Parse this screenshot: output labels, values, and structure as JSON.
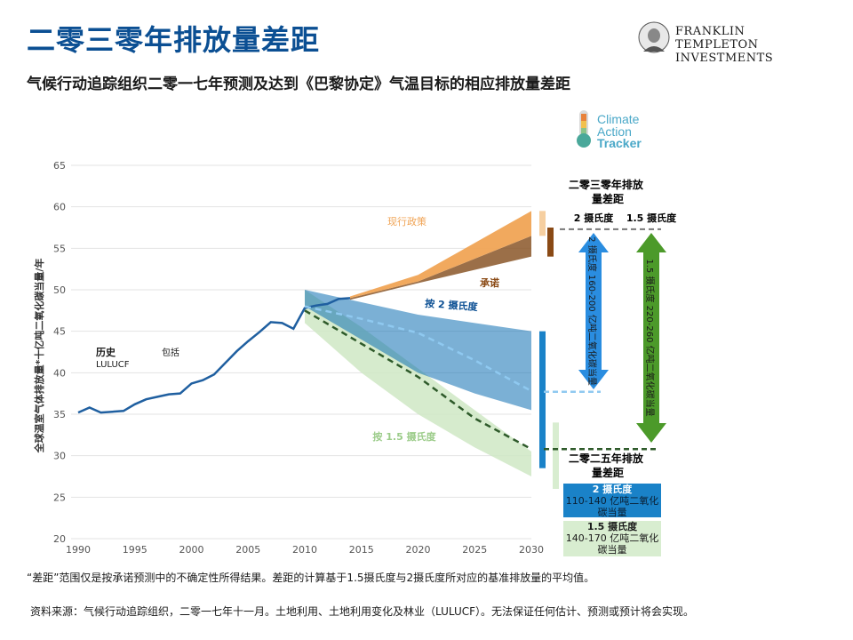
{
  "page": {
    "title": "二零三零年排放量差距",
    "subtitle": "气候行动追踪组织二零一七年预测及达到《巴黎协定》气温目标的相应排放量差距",
    "logo_line1": "FRANKLIN TEMPLETON",
    "logo_line2": "INVESTMENTS",
    "cat_logo": [
      "Climate",
      "Action",
      "Tracker"
    ],
    "footnote": "“差距”范围仅是按承诺预测中的不确定性所得结果。差距的计算基于1.5摄氏度与2摄氏度所对应的基准排放量的平均值。",
    "source": "资料来源：气候行动追踪组织，二零一七年十一月。土地利用、土地利用变化及林业（LULUCF）。无法保证任何估计、预测或预计将会实现。"
  },
  "colors": {
    "title_blue": "#0b4f93",
    "history": "#1f5fa0",
    "current_policy": "#f0a455",
    "pledges": "#8a5628",
    "two_deg": "#0e6fb2",
    "one_five_deg": "#cfe8c4",
    "arrow_blue": "#2a8de0",
    "arrow_green": "#4c9a2a",
    "box_blue": "#1a82c8",
    "box_green": "#d8edd0"
  },
  "chart_data": {
    "type": "area",
    "ylabel": "全球温室气体排放量*十亿吨二氧化碳当量/年",
    "xlim": [
      1990,
      2030
    ],
    "ylim": [
      20,
      65
    ],
    "xticks": [
      1990,
      1995,
      2000,
      2005,
      2010,
      2015,
      2020,
      2025,
      2030
    ],
    "yticks": [
      20,
      25,
      30,
      35,
      40,
      45,
      50,
      55,
      60,
      65
    ],
    "grid": "horizontal",
    "history": {
      "label": "历史",
      "sublabel": "LULUCF",
      "label2": "包括",
      "x": [
        1990,
        1991,
        1992,
        1993,
        1994,
        1995,
        1996,
        1997,
        1998,
        1999,
        2000,
        2001,
        2002,
        2003,
        2004,
        2005,
        2006,
        2007,
        2008,
        2009,
        2010,
        2011,
        2012,
        2013,
        2014
      ],
      "y": [
        35.2,
        35.8,
        35.2,
        35.3,
        35.4,
        36.2,
        36.8,
        37.1,
        37.4,
        37.5,
        38.7,
        39.1,
        39.8,
        41.2,
        42.6,
        43.8,
        44.9,
        46.1,
        46.0,
        45.3,
        47.8,
        48.1,
        48.3,
        48.9,
        49.0
      ]
    },
    "current_policy": {
      "label": "现行政策",
      "x": [
        2014,
        2020,
        2030
      ],
      "lower": [
        49.0,
        51.0,
        56.5
      ],
      "upper": [
        49.2,
        51.8,
        59.5
      ]
    },
    "pledges": {
      "label": "承诺",
      "x": [
        2014,
        2020,
        2030
      ],
      "lower": [
        48.8,
        50.8,
        54.0
      ],
      "upper": [
        49.0,
        51.0,
        56.5
      ]
    },
    "two_deg": {
      "label": "按 2 摄氏度",
      "x": [
        2010,
        2015,
        2020,
        2025,
        2030
      ],
      "upper": [
        50.0,
        48.5,
        47.0,
        46.0,
        45.0
      ],
      "lower": [
        48.0,
        44.0,
        40.0,
        37.5,
        35.5
      ],
      "median_x": [
        2010,
        2015,
        2020,
        2025,
        2030
      ],
      "median": [
        48.0,
        46.5,
        44.8,
        41.5,
        37.8
      ]
    },
    "one_five_deg": {
      "label": "按 1.5 摄氏度",
      "x": [
        2010,
        2015,
        2020,
        2025,
        2030
      ],
      "upper": [
        50.0,
        45.5,
        40.5,
        35.5,
        30.5
      ],
      "lower": [
        46.0,
        40.0,
        35.0,
        31.0,
        27.5
      ],
      "median": [
        47.5,
        43.5,
        39.5,
        34.5,
        30.8
      ]
    },
    "gap_2030": {
      "title": "二零三零年排放量差距",
      "col_2": "2 摄氏度",
      "col_15": "1.5 摄氏度",
      "arrow_2": "2 摄氏度 160-200 亿吨二氧化碳当量",
      "arrow_15": "1.5 摄氏度 220-260 亿吨二氧化碳当量",
      "ref_high": 57.3,
      "ref_2": 37.7,
      "ref_15": 30.8
    },
    "gap_2025": {
      "title": "二零二五年排放量差距",
      "box_2_title": "2 摄氏度",
      "box_2_text": "110-140 亿吨二氧化碳当量",
      "box_15_title": "1.5 摄氏度",
      "box_15_text": "140-170 亿吨二氧化碳当量"
    }
  }
}
